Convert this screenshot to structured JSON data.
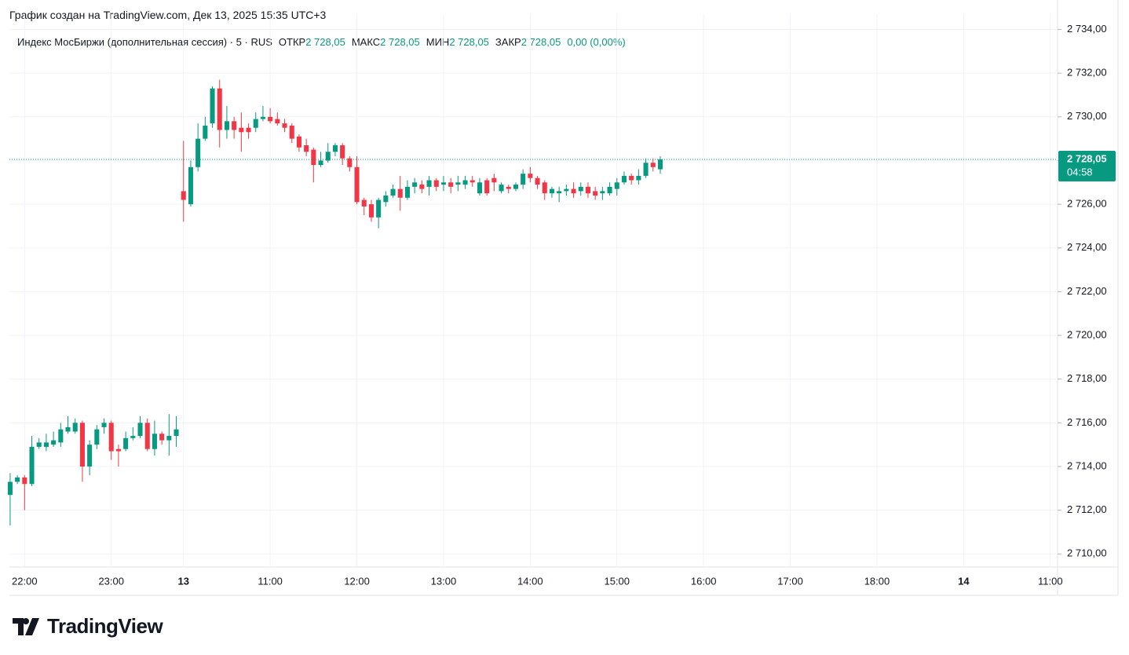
{
  "header": "График создан на TradingView.com, Дек 13, 2025 15:35 UTC+3",
  "legend": {
    "title": "Индекс МосБиржи (дополнительная сессия) · 5 · RUS",
    "fields": [
      {
        "label": "ОТКР",
        "value": "2 728,05"
      },
      {
        "label": "МАКС",
        "value": "2 728,05"
      },
      {
        "label": "МИН",
        "value": "2 728,05"
      },
      {
        "label": "ЗАКР",
        "value": "2 728,05"
      }
    ],
    "change": "0,00 (0,00%)"
  },
  "logo": "TradingView",
  "chart_data": {
    "type": "candlestick",
    "up_color": "#089981",
    "down_color": "#f23645",
    "x": [
      0,
      1,
      2,
      3,
      4,
      5,
      6,
      7,
      8,
      9,
      10,
      11,
      12,
      13,
      14,
      15,
      16,
      17,
      18,
      19,
      20,
      21,
      22,
      23,
      24,
      25,
      26,
      27,
      28,
      29,
      30,
      31,
      32,
      33,
      34,
      35,
      36,
      37,
      38,
      39,
      40,
      41,
      42,
      43,
      44,
      45,
      46,
      47,
      48,
      49,
      50,
      51,
      52,
      53,
      54,
      55,
      56,
      57,
      58,
      59,
      60,
      61,
      62,
      63,
      64,
      65,
      66,
      67,
      68,
      69,
      70,
      71,
      72,
      73,
      74,
      75,
      76,
      77,
      78,
      79,
      80,
      81,
      82,
      83,
      84,
      85,
      86,
      87,
      88,
      89,
      90
    ],
    "open": [
      2712.7,
      2713.3,
      2713.5,
      2713.2,
      2714.9,
      2714.9,
      2715.0,
      2715.1,
      2715.6,
      2715.6,
      2716.0,
      2714.0,
      2715.0,
      2715.8,
      2716.0,
      2714.8,
      2714.8,
      2715.3,
      2715.4,
      2716.0,
      2714.8,
      2715.5,
      2715.2,
      2715.4,
      2726.6,
      2726.0,
      2727.7,
      2729.0,
      2729.7,
      2731.3,
      2729.4,
      2729.8,
      2729.5,
      2729.5,
      2729.5,
      2729.9,
      2730.0,
      2729.9,
      2729.7,
      2729.6,
      2729.1,
      2728.7,
      2728.5,
      2727.8,
      2728.0,
      2728.4,
      2728.7,
      2728.1,
      2727.7,
      2726.2,
      2726.0,
      2725.4,
      2726.1,
      2726.4,
      2726.7,
      2726.3,
      2726.8,
      2726.9,
      2726.8,
      2727.1,
      2726.9,
      2727.0,
      2726.9,
      2726.9,
      2727.1,
      2726.5,
      2727.1,
      2727.2,
      2726.6,
      2726.8,
      2726.7,
      2726.9,
      2727.4,
      2727.2,
      2727.0,
      2726.5,
      2726.5,
      2726.6,
      2726.7,
      2726.6,
      2726.8,
      2726.6,
      2726.5,
      2726.5,
      2726.7,
      2727.0,
      2727.3,
      2727.1,
      2727.3,
      2727.9,
      2727.6
    ],
    "high": [
      2713.7,
      2713.6,
      2713.6,
      2715.4,
      2715.3,
      2715.5,
      2715.6,
      2716.0,
      2716.3,
      2716.2,
      2716.1,
      2715.2,
      2715.9,
      2716.2,
      2716.1,
      2715.0,
      2715.6,
      2715.8,
      2716.3,
      2716.2,
      2716.1,
      2715.6,
      2716.4,
      2716.3,
      2728.9,
      2728.0,
      2729.7,
      2730.0,
      2731.4,
      2731.7,
      2730.5,
      2730.0,
      2730.2,
      2729.7,
      2730.2,
      2730.5,
      2730.4,
      2730.2,
      2729.9,
      2729.7,
      2729.2,
      2729.0,
      2728.6,
      2728.4,
      2728.8,
      2728.8,
      2728.8,
      2728.2,
      2728.2,
      2726.3,
      2726.2,
      2726.3,
      2726.6,
      2726.9,
      2727.3,
      2727.1,
      2727.2,
      2727.1,
      2727.3,
      2727.2,
      2727.3,
      2727.2,
      2727.3,
      2727.3,
      2727.3,
      2727.2,
      2727.2,
      2727.4,
      2727.0,
      2726.9,
      2727.0,
      2727.6,
      2727.7,
      2727.3,
      2727.1,
      2726.8,
      2726.8,
      2726.9,
      2727.0,
      2727.0,
      2727.0,
      2726.8,
      2726.8,
      2727.0,
      2727.2,
      2727.5,
      2727.4,
      2727.6,
      2728.1,
      2728.1,
      2728.2
    ],
    "low": [
      2711.3,
      2713.2,
      2712.0,
      2713.1,
      2714.8,
      2714.7,
      2714.9,
      2714.9,
      2715.5,
      2715.5,
      2713.3,
      2713.6,
      2714.8,
      2715.5,
      2714.3,
      2714.0,
      2714.7,
      2715.2,
      2715.3,
      2714.7,
      2714.5,
      2715.0,
      2714.5,
      2714.9,
      2725.2,
      2725.9,
      2727.5,
      2728.9,
      2729.5,
      2728.6,
      2729.0,
      2729.0,
      2728.4,
      2729.0,
      2729.3,
      2729.8,
      2729.7,
      2729.6,
      2729.3,
      2728.8,
      2728.4,
      2728.2,
      2727.0,
      2727.7,
      2727.9,
      2728.2,
      2727.8,
      2727.5,
      2726.0,
      2725.5,
      2725.2,
      2724.9,
      2725.9,
      2726.3,
      2725.7,
      2726.2,
      2726.5,
      2726.5,
      2726.4,
      2726.6,
      2726.6,
      2726.5,
      2726.6,
      2726.7,
      2726.8,
      2726.4,
      2726.4,
      2726.6,
      2726.5,
      2726.5,
      2726.6,
      2726.7,
      2727.0,
      2726.7,
      2726.2,
      2726.3,
      2726.1,
      2726.4,
      2726.3,
      2726.4,
      2726.3,
      2726.2,
      2726.2,
      2726.4,
      2726.4,
      2726.9,
      2726.9,
      2726.9,
      2727.2,
      2727.5,
      2727.4
    ],
    "close": [
      2713.3,
      2713.5,
      2713.2,
      2714.9,
      2715.1,
      2715.1,
      2715.2,
      2715.7,
      2715.8,
      2716.0,
      2714.0,
      2715.0,
      2715.7,
      2716.0,
      2714.7,
      2714.7,
      2715.3,
      2715.4,
      2716.0,
      2714.8,
      2715.5,
      2715.2,
      2715.4,
      2715.7,
      2726.2,
      2727.7,
      2729.0,
      2729.6,
      2731.3,
      2729.4,
      2729.8,
      2729.4,
      2729.3,
      2729.3,
      2729.9,
      2730.0,
      2729.8,
      2729.7,
      2729.5,
      2729.0,
      2728.6,
      2728.4,
      2727.8,
      2728.0,
      2728.4,
      2728.7,
      2728.1,
      2727.7,
      2726.1,
      2725.9,
      2725.4,
      2726.2,
      2726.4,
      2726.7,
      2726.3,
      2726.8,
      2727.0,
      2726.7,
      2727.1,
      2726.8,
      2727.0,
      2726.8,
      2727.0,
      2727.1,
      2727.0,
      2727.0,
      2726.5,
      2727.0,
      2726.9,
      2726.7,
      2726.9,
      2727.4,
      2727.2,
      2726.9,
      2726.5,
      2726.7,
      2726.6,
      2726.7,
      2726.5,
      2726.8,
      2726.5,
      2726.4,
      2726.6,
      2726.8,
      2727.0,
      2727.3,
      2727.1,
      2727.3,
      2727.9,
      2727.7,
      2728.05
    ],
    "last_price": 2728.05,
    "last_price_label": "2 728,05",
    "countdown": "04:58",
    "xlim": [
      -0.1,
      145
    ],
    "xticks": [
      {
        "value": 2,
        "label": "22:00"
      },
      {
        "value": 14,
        "label": "23:00"
      },
      {
        "value": 24,
        "label": "13"
      },
      {
        "value": 36,
        "label": "11:00"
      },
      {
        "value": 48,
        "label": "12:00"
      },
      {
        "value": 60,
        "label": "13:00"
      },
      {
        "value": 72,
        "label": "14:00"
      },
      {
        "value": 84,
        "label": "15:00"
      },
      {
        "value": 96,
        "label": "16:00"
      },
      {
        "value": 108,
        "label": "17:00"
      },
      {
        "value": 120,
        "label": "18:00"
      },
      {
        "value": 132,
        "label": "14"
      },
      {
        "value": 144,
        "label": "11:00"
      }
    ],
    "ylim": [
      2709.4,
      2734.7
    ],
    "yticks": [
      {
        "value": 2710,
        "label": "2 710,00"
      },
      {
        "value": 2712,
        "label": "2 712,00"
      },
      {
        "value": 2714,
        "label": "2 714,00"
      },
      {
        "value": 2716,
        "label": "2 716,00"
      },
      {
        "value": 2718,
        "label": "2 718,00"
      },
      {
        "value": 2720,
        "label": "2 720,00"
      },
      {
        "value": 2722,
        "label": "2 722,00"
      },
      {
        "value": 2724,
        "label": "2 724,00"
      },
      {
        "value": 2726,
        "label": "2 726,00"
      },
      {
        "value": 2728,
        "label": "2 728,00"
      },
      {
        "value": 2730,
        "label": "2 730,00"
      },
      {
        "value": 2732,
        "label": "2 732,00"
      },
      {
        "value": 2734,
        "label": "2 734,00"
      }
    ],
    "grid": true
  }
}
